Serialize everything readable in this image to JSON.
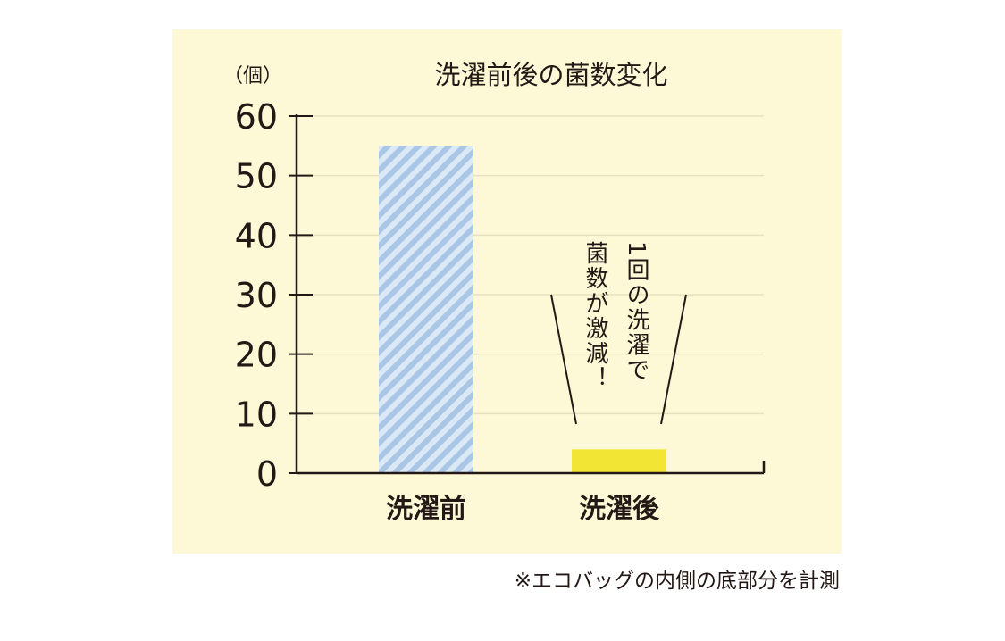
{
  "chart_data": {
    "type": "bar",
    "title": "洗濯前後の菌数変化",
    "unit_label": "（個）",
    "categories": [
      "洗濯前",
      "洗濯後"
    ],
    "values": [
      55,
      4
    ],
    "ylim": [
      0,
      60
    ],
    "yticks": [
      "0",
      "10",
      "20",
      "30",
      "40",
      "50",
      "60"
    ],
    "grid": true,
    "annotation": {
      "line1": "1回の洗濯で",
      "line2": "菌数が激減！"
    },
    "colors": {
      "background": "#fdf8d5",
      "bar_before_stripe": "#a9c6e6",
      "bar_before_base": "#dbe8f5",
      "bar_after": "#f2e534",
      "axis": "#231815",
      "grid": "#e8e1bd"
    }
  },
  "footnote": "※エコバッグの内側の底部分を計測"
}
